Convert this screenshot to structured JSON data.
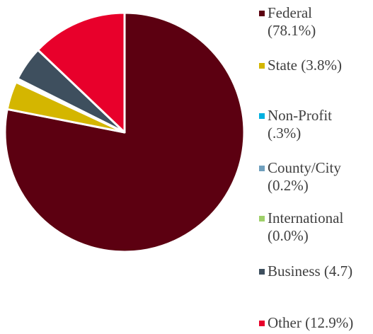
{
  "chart_data": {
    "type": "pie",
    "categories": [
      "Federal (78.1%)",
      "State (3.8%)",
      "Non-Profit (.3%)",
      "County/City (0.2%)",
      "International (0.0%)",
      "Business (4.7)",
      "Other (12.9%)"
    ],
    "values": [
      78.1,
      3.8,
      0.3,
      0.2,
      0.0,
      4.7,
      12.9
    ],
    "colors": [
      "#5c0011",
      "#d4b600",
      "#00b0e0",
      "#6f9fbd",
      "#9fd06a",
      "#3e4f5e",
      "#e8002b"
    ],
    "legend": "right"
  }
}
